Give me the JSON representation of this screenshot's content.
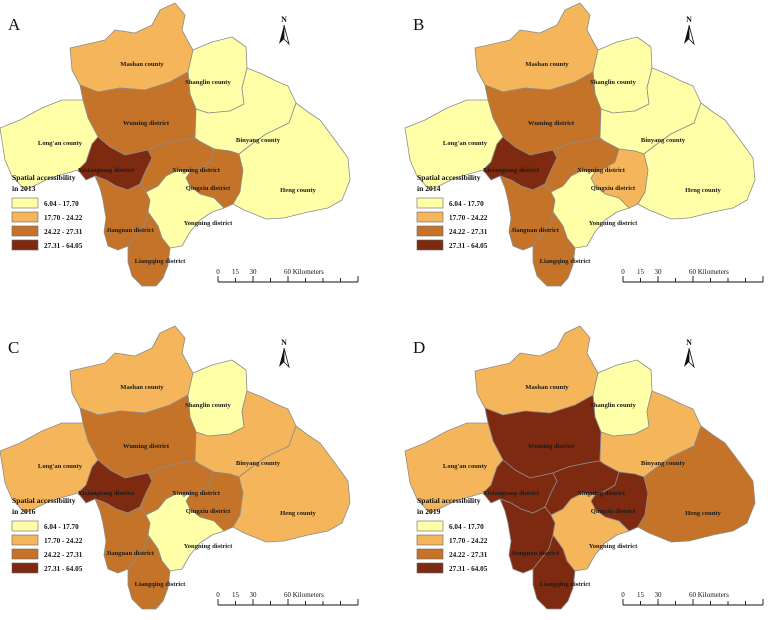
{
  "legend_classes": [
    {
      "range": "6.04 - 17.70",
      "color": "#ffffa8"
    },
    {
      "range": "17.70 - 24.22",
      "color": "#f5b55a"
    },
    {
      "range": "24.22 - 27.31",
      "color": "#c47328"
    },
    {
      "range": "27.31 - 64.05",
      "color": "#7e2a10"
    }
  ],
  "scalebar": {
    "ticks": [
      "0",
      "15",
      "30",
      "60 Kilometers"
    ]
  },
  "north_label": "N",
  "region_names": {
    "mashan": "Mashan county",
    "shanglin": "Shanglin county",
    "wuming": "Wuming district",
    "longan": "Long'an county",
    "binyang": "Binyang county",
    "xixiangtang": "Xixiangtang district",
    "xingning": "Xingning district",
    "qingxiu": "Qingxiu district",
    "heng": "Heng county",
    "jiangnan": "Jiangnan district",
    "yongning": "Yongning district",
    "liangqing": "Liangqing district"
  },
  "panels": [
    {
      "letter": "A",
      "legend_title_1": "Spatial accessibility",
      "legend_title_2": "in 2013",
      "classes": {
        "mashan": 1,
        "shanglin": 0,
        "wuming": 2,
        "longan": 0,
        "binyang": 0,
        "xixiangtang": 3,
        "xingning": 2,
        "qingxiu": 2,
        "heng": 0,
        "jiangnan": 2,
        "yongning": 0,
        "liangqing": 2
      }
    },
    {
      "letter": "B",
      "legend_title_1": "Spatial accessibility",
      "legend_title_2": "in 2014",
      "classes": {
        "mashan": 1,
        "shanglin": 0,
        "wuming": 2,
        "longan": 0,
        "binyang": 0,
        "xixiangtang": 3,
        "xingning": 2,
        "qingxiu": 1,
        "heng": 0,
        "jiangnan": 2,
        "yongning": 0,
        "liangqing": 2
      }
    },
    {
      "letter": "C",
      "legend_title_1": "Spatial accessibility",
      "legend_title_2": "in 2016",
      "classes": {
        "mashan": 1,
        "shanglin": 0,
        "wuming": 2,
        "longan": 1,
        "binyang": 1,
        "xixiangtang": 3,
        "xingning": 2,
        "qingxiu": 2,
        "heng": 1,
        "jiangnan": 2,
        "yongning": 0,
        "liangqing": 2
      }
    },
    {
      "letter": "D",
      "legend_title_1": "Spatial accessibility",
      "legend_title_2": "in 2019",
      "classes": {
        "mashan": 1,
        "shanglin": 0,
        "wuming": 3,
        "longan": 1,
        "binyang": 1,
        "xixiangtang": 3,
        "xingning": 3,
        "qingxiu": 3,
        "heng": 2,
        "jiangnan": 3,
        "yongning": 1,
        "liangqing": 3
      }
    }
  ]
}
